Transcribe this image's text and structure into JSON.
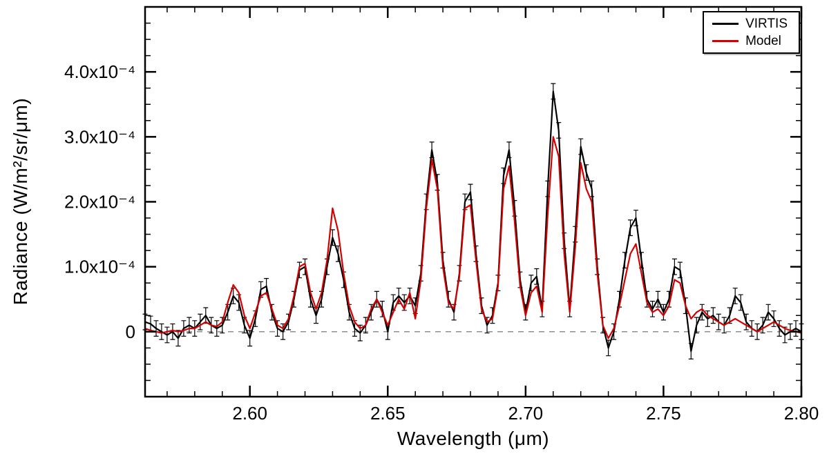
{
  "figure": {
    "background": "#ffffff",
    "frame_color": "#000000",
    "zero_line_color": "#555555"
  },
  "chart_data": {
    "type": "line",
    "title": "",
    "xlabel": "Wavelength (μm)",
    "ylabel": "Radiance (W/m²/sr/μm)",
    "xlim": [
      2.562,
      2.8
    ],
    "ylim": [
      -0.0001,
      0.0005
    ],
    "value_scale": 0.0001,
    "grid": false,
    "legend_position": "top-right",
    "zero_line": {
      "y": 0,
      "style": "dashed"
    },
    "x_major_ticks": [
      2.6,
      2.65,
      2.7,
      2.75,
      2.8
    ],
    "x_tick_labels": [
      "2.60",
      "2.65",
      "2.70",
      "2.75",
      "2.80"
    ],
    "x_minor_step": 0.01,
    "y_major_ticks_scaled": [
      0,
      1,
      2,
      3,
      4
    ],
    "y_tick_labels": [
      "0",
      "1.0x10⁻⁴",
      "2.0x10⁻⁴",
      "3.0x10⁻⁴",
      "4.0x10⁻⁴"
    ],
    "y_minor_step_scaled": 0.25,
    "x": [
      2.562,
      2.564,
      2.566,
      2.568,
      2.57,
      2.572,
      2.574,
      2.576,
      2.578,
      2.58,
      2.582,
      2.584,
      2.586,
      2.588,
      2.59,
      2.592,
      2.594,
      2.596,
      2.598,
      2.6,
      2.602,
      2.604,
      2.606,
      2.608,
      2.61,
      2.612,
      2.614,
      2.616,
      2.618,
      2.62,
      2.622,
      2.624,
      2.626,
      2.628,
      2.63,
      2.632,
      2.634,
      2.636,
      2.638,
      2.64,
      2.642,
      2.644,
      2.646,
      2.648,
      2.65,
      2.652,
      2.654,
      2.656,
      2.658,
      2.66,
      2.662,
      2.664,
      2.666,
      2.668,
      2.67,
      2.672,
      2.674,
      2.676,
      2.678,
      2.68,
      2.682,
      2.684,
      2.686,
      2.688,
      2.69,
      2.692,
      2.694,
      2.696,
      2.698,
      2.7,
      2.702,
      2.704,
      2.706,
      2.708,
      2.71,
      2.712,
      2.714,
      2.716,
      2.718,
      2.72,
      2.722,
      2.724,
      2.726,
      2.728,
      2.73,
      2.732,
      2.734,
      2.736,
      2.738,
      2.74,
      2.742,
      2.744,
      2.746,
      2.748,
      2.75,
      2.752,
      2.754,
      2.756,
      2.758,
      2.76,
      2.762,
      2.764,
      2.766,
      2.768,
      2.77,
      2.772,
      2.774,
      2.776,
      2.778,
      2.78,
      2.782,
      2.784,
      2.786,
      2.788,
      2.79,
      2.792,
      2.794,
      2.796,
      2.798,
      2.8
    ],
    "series": [
      {
        "name": "VIRTIS",
        "color": "#000000",
        "yerr_scaled": 0.12,
        "values_scaled": [
          0.15,
          0.12,
          0.05,
          0.0,
          -0.05,
          0.0,
          -0.1,
          0.05,
          0.1,
          0.05,
          0.15,
          0.25,
          0.1,
          0.05,
          0.1,
          0.3,
          0.55,
          0.45,
          0.1,
          -0.1,
          0.2,
          0.65,
          0.7,
          0.3,
          0.05,
          0.0,
          0.15,
          0.5,
          0.95,
          1.0,
          0.5,
          0.25,
          0.5,
          1.0,
          1.45,
          1.2,
          0.8,
          0.3,
          0.05,
          -0.02,
          0.1,
          0.3,
          0.5,
          0.35,
          0.0,
          0.45,
          0.55,
          0.45,
          0.55,
          0.4,
          0.9,
          2.0,
          2.8,
          2.3,
          1.1,
          0.5,
          0.3,
          0.9,
          2.0,
          2.15,
          1.2,
          0.4,
          0.1,
          0.25,
          0.75,
          2.4,
          2.8,
          1.9,
          0.8,
          0.3,
          0.75,
          0.85,
          0.35,
          2.2,
          3.7,
          3.1,
          1.4,
          0.35,
          1.5,
          2.85,
          2.45,
          2.2,
          1.0,
          0.1,
          -0.25,
          0.0,
          0.5,
          1.1,
          1.6,
          1.75,
          1.1,
          0.5,
          0.35,
          0.5,
          0.3,
          0.5,
          1.0,
          0.95,
          0.4,
          -0.3,
          0.1,
          0.3,
          0.2,
          0.25,
          0.15,
          0.1,
          0.25,
          0.55,
          0.45,
          0.15,
          0.05,
          0.0,
          0.1,
          0.3,
          0.2,
          0.05,
          -0.05,
          0.0,
          0.05,
          0.0
        ]
      },
      {
        "name": "Model",
        "color": "#d40000",
        "values_scaled": [
          0.05,
          0.02,
          0.0,
          -0.02,
          0.0,
          0.02,
          0.0,
          0.02,
          0.05,
          0.05,
          0.1,
          0.15,
          0.1,
          0.08,
          0.15,
          0.45,
          0.72,
          0.6,
          0.25,
          0.05,
          0.3,
          0.55,
          0.6,
          0.35,
          0.1,
          0.05,
          0.2,
          0.55,
          1.0,
          1.05,
          0.6,
          0.35,
          0.6,
          1.1,
          1.9,
          1.55,
          0.9,
          0.4,
          0.15,
          0.05,
          0.1,
          0.35,
          0.5,
          0.3,
          0.1,
          0.3,
          0.5,
          0.35,
          0.6,
          0.2,
          0.8,
          1.9,
          2.65,
          2.2,
          1.0,
          0.45,
          0.35,
          0.85,
          1.9,
          1.95,
          1.1,
          0.35,
          0.15,
          0.2,
          0.7,
          2.2,
          2.55,
          1.7,
          0.7,
          0.25,
          0.6,
          0.7,
          0.3,
          1.8,
          3.0,
          2.7,
          1.2,
          0.3,
          1.3,
          2.6,
          2.2,
          2.0,
          0.9,
          0.1,
          -0.1,
          0.05,
          0.4,
          0.8,
          1.2,
          1.35,
          0.9,
          0.45,
          0.3,
          0.35,
          0.25,
          0.4,
          0.8,
          0.75,
          0.4,
          0.2,
          0.3,
          0.35,
          0.25,
          0.2,
          0.15,
          0.1,
          0.15,
          0.2,
          0.15,
          0.1,
          0.05,
          0.0,
          0.05,
          0.1,
          0.15,
          0.1,
          0.05,
          0.02,
          0.0,
          -0.02
        ]
      }
    ]
  }
}
